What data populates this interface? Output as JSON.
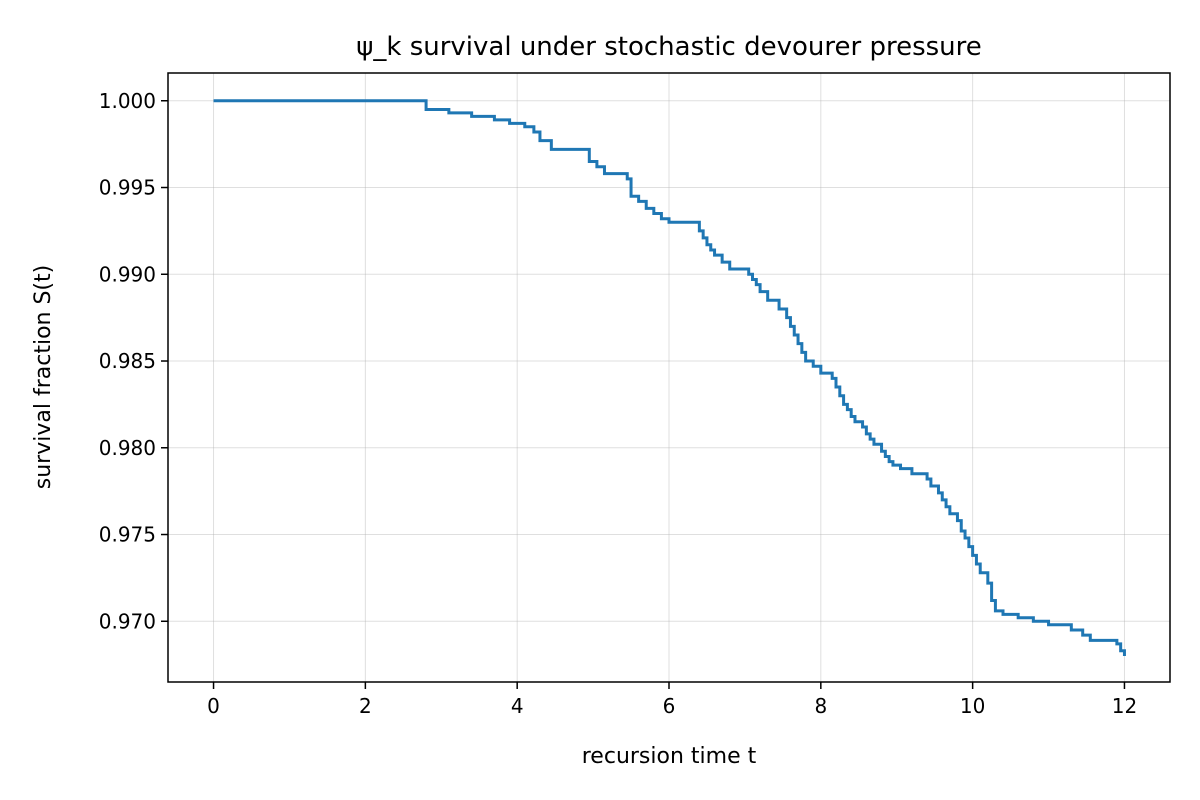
{
  "chart_data": {
    "type": "line",
    "title": "ψ_k survival under stochastic devourer pressure",
    "xlabel": "recursion time t",
    "ylabel": "survival fraction S(t)",
    "xlim": [
      -0.6,
      12.6
    ],
    "ylim": [
      0.9665,
      1.0016
    ],
    "xticks": [
      0,
      2,
      4,
      6,
      8,
      10,
      12
    ],
    "xtick_labels": [
      "0",
      "2",
      "4",
      "6",
      "8",
      "10",
      "12"
    ],
    "yticks": [
      0.97,
      0.975,
      0.98,
      0.985,
      0.99,
      0.995,
      1.0
    ],
    "ytick_labels": [
      "0.970",
      "0.975",
      "0.980",
      "0.985",
      "0.990",
      "0.995",
      "1.000"
    ],
    "grid": true,
    "line_style": "step",
    "series": [
      {
        "color": "#1f77b4",
        "x": [
          0.0,
          2.72,
          2.8,
          3.1,
          3.4,
          3.7,
          3.9,
          4.1,
          4.22,
          4.3,
          4.45,
          4.95,
          5.05,
          5.15,
          5.45,
          5.5,
          5.6,
          5.7,
          5.8,
          5.9,
          6.0,
          6.35,
          6.4,
          6.45,
          6.5,
          6.55,
          6.6,
          6.7,
          6.8,
          7.0,
          7.05,
          7.1,
          7.15,
          7.2,
          7.3,
          7.45,
          7.55,
          7.6,
          7.65,
          7.7,
          7.75,
          7.8,
          7.9,
          8.0,
          8.15,
          8.2,
          8.25,
          8.3,
          8.35,
          8.4,
          8.45,
          8.55,
          8.6,
          8.65,
          8.7,
          8.8,
          8.85,
          8.9,
          8.95,
          9.05,
          9.2,
          9.4,
          9.45,
          9.55,
          9.6,
          9.65,
          9.7,
          9.8,
          9.85,
          9.9,
          9.95,
          10.0,
          10.05,
          10.1,
          10.2,
          10.25,
          10.3,
          10.4,
          10.6,
          10.8,
          11.0,
          11.3,
          11.45,
          11.55,
          11.9,
          11.95,
          12.0
        ],
        "values": [
          1.0,
          1.0,
          0.9995,
          0.9993,
          0.9991,
          0.9989,
          0.9987,
          0.9985,
          0.9982,
          0.9977,
          0.9972,
          0.9965,
          0.9962,
          0.9958,
          0.9955,
          0.9945,
          0.9942,
          0.9938,
          0.9935,
          0.9932,
          0.993,
          0.993,
          0.9925,
          0.9921,
          0.9917,
          0.9914,
          0.9911,
          0.9907,
          0.9903,
          0.9903,
          0.99,
          0.9897,
          0.9894,
          0.989,
          0.9885,
          0.988,
          0.9875,
          0.987,
          0.9865,
          0.986,
          0.9855,
          0.985,
          0.9847,
          0.9843,
          0.984,
          0.9835,
          0.983,
          0.9825,
          0.9822,
          0.9818,
          0.9815,
          0.9812,
          0.9808,
          0.9805,
          0.9802,
          0.9798,
          0.9795,
          0.9792,
          0.979,
          0.9788,
          0.9785,
          0.9782,
          0.9778,
          0.9774,
          0.977,
          0.9766,
          0.9762,
          0.9758,
          0.9752,
          0.9748,
          0.9743,
          0.9738,
          0.9733,
          0.9728,
          0.9722,
          0.9712,
          0.9706,
          0.9704,
          0.9702,
          0.97,
          0.9698,
          0.9695,
          0.9692,
          0.9689,
          0.9687,
          0.9683,
          0.968
        ]
      }
    ]
  }
}
